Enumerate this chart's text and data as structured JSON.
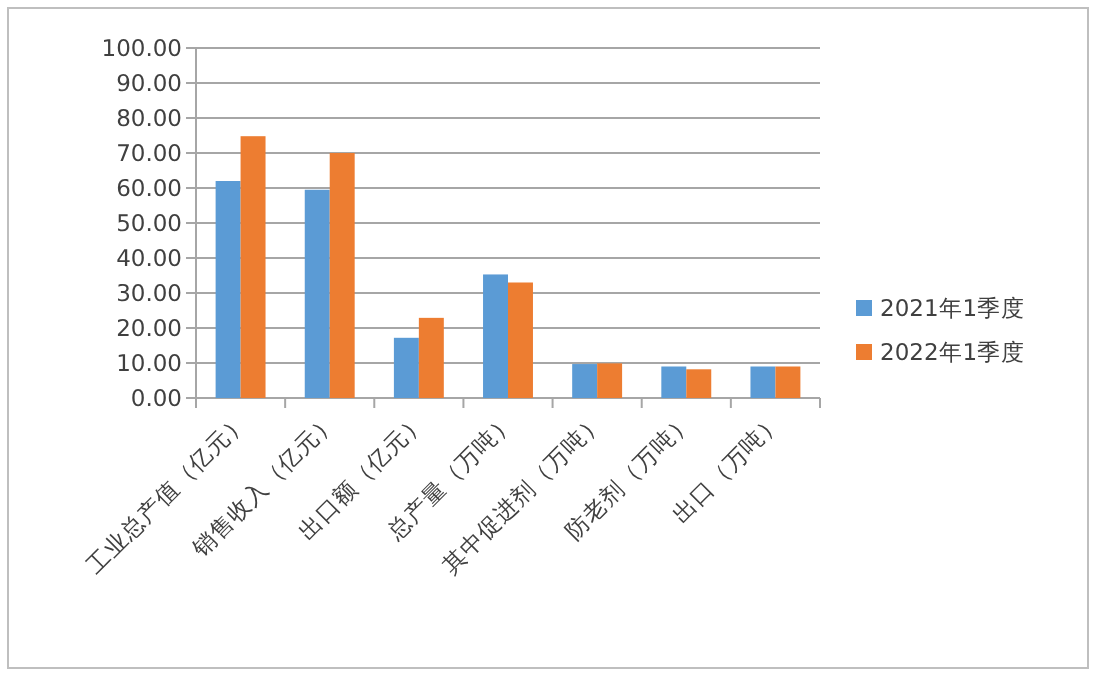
{
  "chart_data": {
    "type": "bar",
    "categories": [
      "工业总产值（亿元）",
      "销售收入（亿元）",
      "出口额（亿元）",
      "总产量（万吨）",
      "其中促进剂（万吨）",
      "防老剂（万吨）",
      "出口（万吨）"
    ],
    "series": [
      {
        "name": "2021年1季度",
        "color": "#5b9bd5",
        "values": [
          62.0,
          59.5,
          17.2,
          35.3,
          9.7,
          9.0,
          9.0
        ]
      },
      {
        "name": "2022年1季度",
        "color": "#ed7d31",
        "values": [
          74.8,
          70.0,
          22.9,
          33.0,
          9.9,
          8.2,
          9.0
        ]
      }
    ],
    "ylim": [
      0,
      100
    ],
    "yticks": [
      {
        "value": 0,
        "label": "0.00"
      },
      {
        "value": 10,
        "label": "10.00"
      },
      {
        "value": 20,
        "label": "20.00"
      },
      {
        "value": 30,
        "label": "30.00"
      },
      {
        "value": 40,
        "label": "40.00"
      },
      {
        "value": 50,
        "label": "50.00"
      },
      {
        "value": 60,
        "label": "60.00"
      },
      {
        "value": 70,
        "label": "70.00"
      },
      {
        "value": 80,
        "label": "80.00"
      },
      {
        "value": 90,
        "label": "90.00"
      },
      {
        "value": 100,
        "label": "100.00"
      }
    ],
    "grid": "y",
    "legend": "right"
  }
}
